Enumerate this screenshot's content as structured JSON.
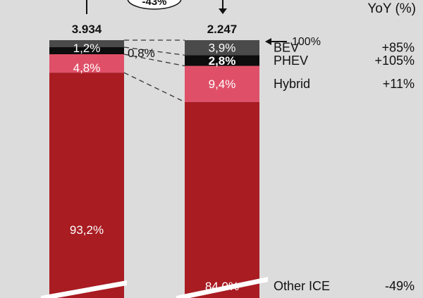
{
  "chart_data": {
    "type": "bar",
    "stacked": true,
    "normalized": true,
    "truncated_bottom": true,
    "bars": [
      {
        "total_label": "3.934",
        "segments": [
          {
            "series": "Other ICE",
            "label": "93,2%",
            "value": 93.2
          },
          {
            "series": "Hybrid",
            "label": "4,8%",
            "value": 4.8
          },
          {
            "series": "PHEV",
            "label": "0,8%",
            "value": 0.8
          },
          {
            "series": "BEV",
            "label": "1,2%",
            "value": 1.2
          }
        ]
      },
      {
        "total_label": "2.247",
        "segments": [
          {
            "series": "Other ICE",
            "label": "84,0%",
            "value": 84.0
          },
          {
            "series": "Hybrid",
            "label": "9,4%",
            "value": 9.4
          },
          {
            "series": "PHEV",
            "label": "2,8%",
            "value": 2.8
          },
          {
            "series": "BEV",
            "label": "3,9%",
            "value": 3.9
          }
        ]
      }
    ],
    "series": [
      {
        "name": "BEV",
        "color": "#4a4a4a",
        "yoy": "+85%"
      },
      {
        "name": "PHEV",
        "color": "#0d0d0d",
        "yoy": "+105%"
      },
      {
        "name": "Hybrid",
        "color": "#df5068",
        "yoy": "+11%"
      },
      {
        "name": "Other ICE",
        "color": "#a81c22",
        "yoy": "-49%"
      }
    ],
    "yoy_header": "YoY (%)",
    "change_label": "-43%",
    "reference_label": "100%"
  }
}
